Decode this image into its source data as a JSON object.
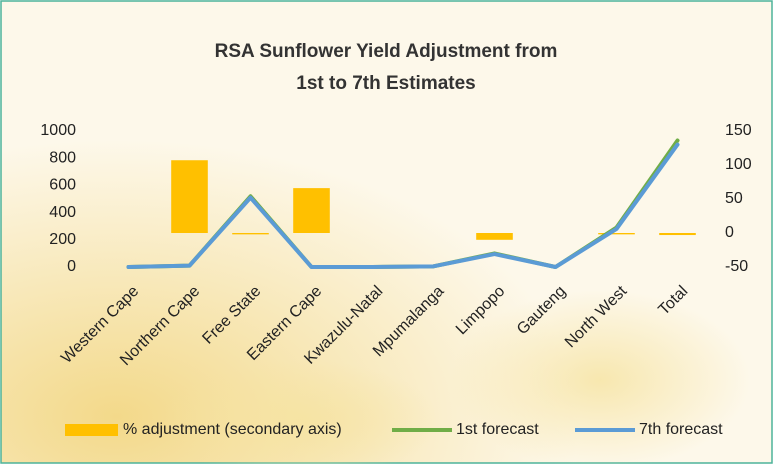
{
  "chart_data": {
    "type": "combo",
    "title": [
      "RSA Sunflower Yield Adjustment from",
      "1st to 7th Estimates"
    ],
    "categories": [
      "Western Cape",
      "Northern Cape",
      "Free State",
      "Eastern Cape",
      "Kwazulu-Natal",
      "Mpumalanga",
      "Limpopo",
      "Gauteng",
      "North West",
      "Total"
    ],
    "series": [
      {
        "name": "% adjustment (secondary axis)",
        "kind": "bar",
        "axis": "y2",
        "color": "#ffc000",
        "values": [
          0,
          107,
          -2,
          66,
          0,
          0,
          -10,
          0,
          -2,
          -3
        ]
      },
      {
        "name": "1st forecast",
        "kind": "line",
        "color": "#70ad47",
        "values": [
          0,
          10,
          520,
          0,
          0,
          5,
          100,
          0,
          290,
          930
        ]
      },
      {
        "name": "7th forecast",
        "kind": "line",
        "color": "#5b9bd5",
        "values": [
          0,
          10,
          510,
          0,
          0,
          5,
          95,
          0,
          280,
          900
        ]
      }
    ],
    "ylim": [
      0,
      1000
    ],
    "yticks": [
      0,
      200,
      400,
      600,
      800,
      1000
    ],
    "y2lim": [
      -50,
      150
    ],
    "y2ticks": [
      -50,
      0,
      50,
      100,
      150
    ],
    "legend": "bottom"
  }
}
